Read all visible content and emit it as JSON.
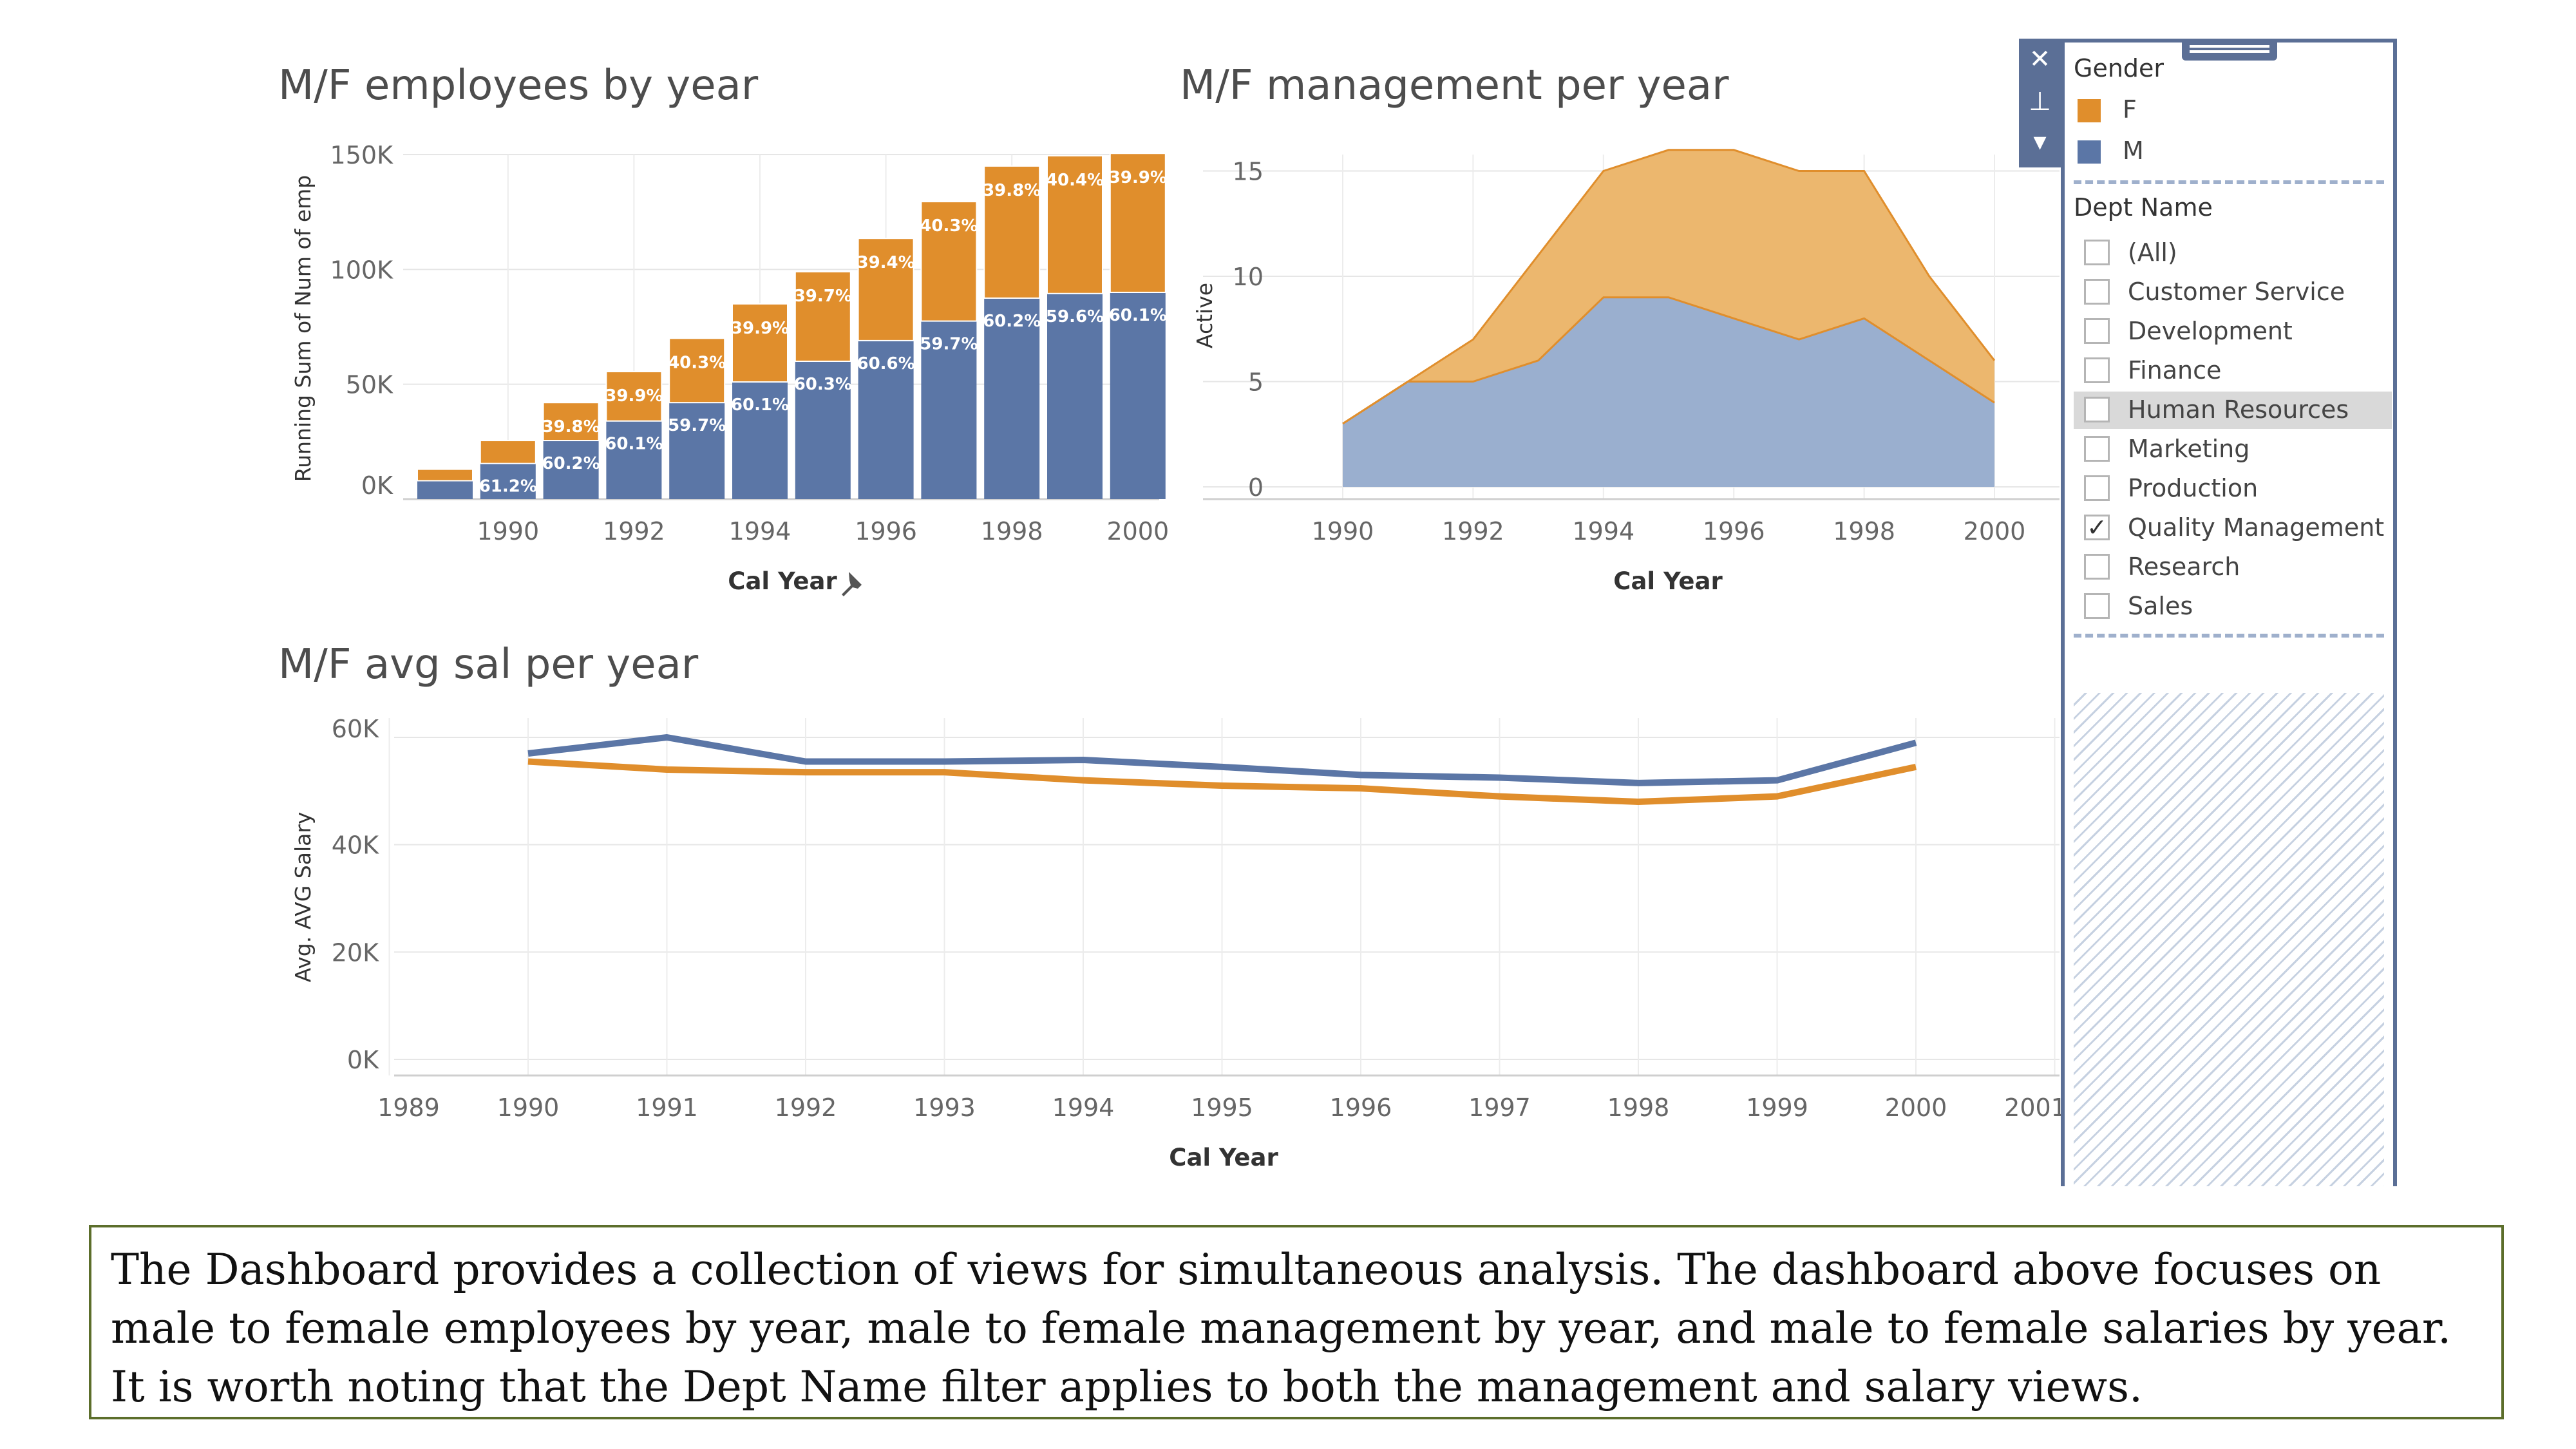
{
  "charts": {
    "employees": {
      "title": "M/F employees by year",
      "xlabel": "Cal Year",
      "ylabel": "Running Sum of Num of emp",
      "yticks": [
        "150K",
        "100K",
        "50K",
        "0K"
      ],
      "xticks": [
        "1990",
        "1992",
        "1994",
        "1996",
        "1998",
        "2000"
      ]
    },
    "management": {
      "title": "M/F management per year",
      "xlabel": "Cal Year",
      "ylabel": "Active",
      "yticks": [
        "15",
        "10",
        "5",
        "0"
      ],
      "xticks": [
        "1990",
        "1992",
        "1994",
        "1996",
        "1998",
        "2000"
      ]
    },
    "salary": {
      "title": "M/F avg sal per year",
      "xlabel": "Cal Year",
      "ylabel": "Avg. AVG Salary",
      "yticks": [
        "60K",
        "40K",
        "20K",
        "0K"
      ],
      "xticks": [
        "1989",
        "1990",
        "1991",
        "1992",
        "1993",
        "1994",
        "1995",
        "1996",
        "1997",
        "1998",
        "1999",
        "2000",
        "2001"
      ]
    }
  },
  "chart_data": [
    {
      "type": "bar",
      "title": "M/F employees by year",
      "xlabel": "Cal Year",
      "ylabel": "Running Sum of Num of emp",
      "ylim": [
        0,
        150000
      ],
      "stacked": true,
      "categories": [
        1989,
        1990,
        1991,
        1992,
        1993,
        1994,
        1995,
        1996,
        1997,
        1998,
        1999,
        2000
      ],
      "series": [
        {
          "name": "M",
          "values": [
            8000,
            15500,
            25500,
            34000,
            42000,
            51000,
            60000,
            69000,
            77500,
            87500,
            89500,
            90000
          ],
          "labels": [
            "",
            "61.2%",
            "60.2%",
            "60.1%",
            "59.7%",
            "60.1%",
            "60.3%",
            "60.6%",
            "59.7%",
            "60.2%",
            "59.6%",
            "60.1%"
          ]
        },
        {
          "name": "F",
          "values": [
            5000,
            10000,
            16500,
            21500,
            28000,
            34000,
            39000,
            44500,
            52000,
            57500,
            60000,
            60500
          ],
          "labels": [
            "",
            "",
            "39.8%",
            "39.9%",
            "40.3%",
            "39.9%",
            "39.7%",
            "39.4%",
            "40.3%",
            "39.8%",
            "40.4%",
            "39.9%"
          ]
        }
      ]
    },
    {
      "type": "area",
      "title": "M/F management per year",
      "xlabel": "Cal Year",
      "ylabel": "Active",
      "ylim": [
        0,
        16
      ],
      "stacked": true,
      "x": [
        1990,
        1991,
        1992,
        1993,
        1994,
        1995,
        1996,
        1997,
        1998,
        1999,
        2000
      ],
      "series": [
        {
          "name": "M",
          "values": [
            3,
            5,
            5,
            6,
            9,
            9,
            8,
            7,
            8,
            6,
            4
          ]
        },
        {
          "name": "F",
          "values": [
            0,
            0,
            2,
            5,
            6,
            7,
            8,
            8,
            7,
            4,
            2
          ]
        }
      ]
    },
    {
      "type": "line",
      "title": "M/F avg sal per year",
      "xlabel": "Cal Year",
      "ylabel": "Avg. AVG Salary",
      "ylim": [
        0,
        60000
      ],
      "xlim": [
        1989,
        2001
      ],
      "x": [
        1990,
        1991,
        1992,
        1993,
        1994,
        1995,
        1996,
        1997,
        1998,
        1999,
        2000
      ],
      "series": [
        {
          "name": "M",
          "values": [
            57000,
            60000,
            55500,
            55500,
            55800,
            54500,
            53000,
            52500,
            51500,
            52000,
            59000
          ]
        },
        {
          "name": "F",
          "values": [
            55500,
            54000,
            53500,
            53500,
            52000,
            51000,
            50500,
            49000,
            48000,
            49000,
            54500
          ]
        }
      ]
    }
  ],
  "colors": {
    "M": "#5b76a6",
    "F": "#e08e2c",
    "M_area": "#9aafcf",
    "F_area": "#ecb76e",
    "panel": "#5b6f96"
  },
  "panel": {
    "tools": [
      {
        "icon": "close-icon",
        "glyph": "✕"
      },
      {
        "icon": "pin-icon",
        "glyph": "⊥"
      },
      {
        "icon": "dropdown-icon",
        "glyph": "▾"
      }
    ],
    "gender": {
      "title": "Gender",
      "items": [
        {
          "label": "F",
          "color": "#e08e2c"
        },
        {
          "label": "M",
          "color": "#5b76a6"
        }
      ]
    },
    "dept": {
      "title": "Dept Name",
      "items": [
        {
          "label": "(All)",
          "checked": false
        },
        {
          "label": "Customer Service",
          "checked": false
        },
        {
          "label": "Development",
          "checked": false
        },
        {
          "label": "Finance",
          "checked": false
        },
        {
          "label": "Human Resources",
          "checked": false,
          "highlighted": true
        },
        {
          "label": "Marketing",
          "checked": false
        },
        {
          "label": "Production",
          "checked": false
        },
        {
          "label": "Quality Management",
          "checked": true
        },
        {
          "label": "Research",
          "checked": false
        },
        {
          "label": "Sales",
          "checked": false
        }
      ]
    }
  },
  "caption": "The Dashboard provides a collection of views for simultaneous analysis. The dashboard above focuses on male to female employees by year, male to female management by year, and male to female salaries by year. It is worth noting that the Dept Name filter applies to both the management and salary views."
}
